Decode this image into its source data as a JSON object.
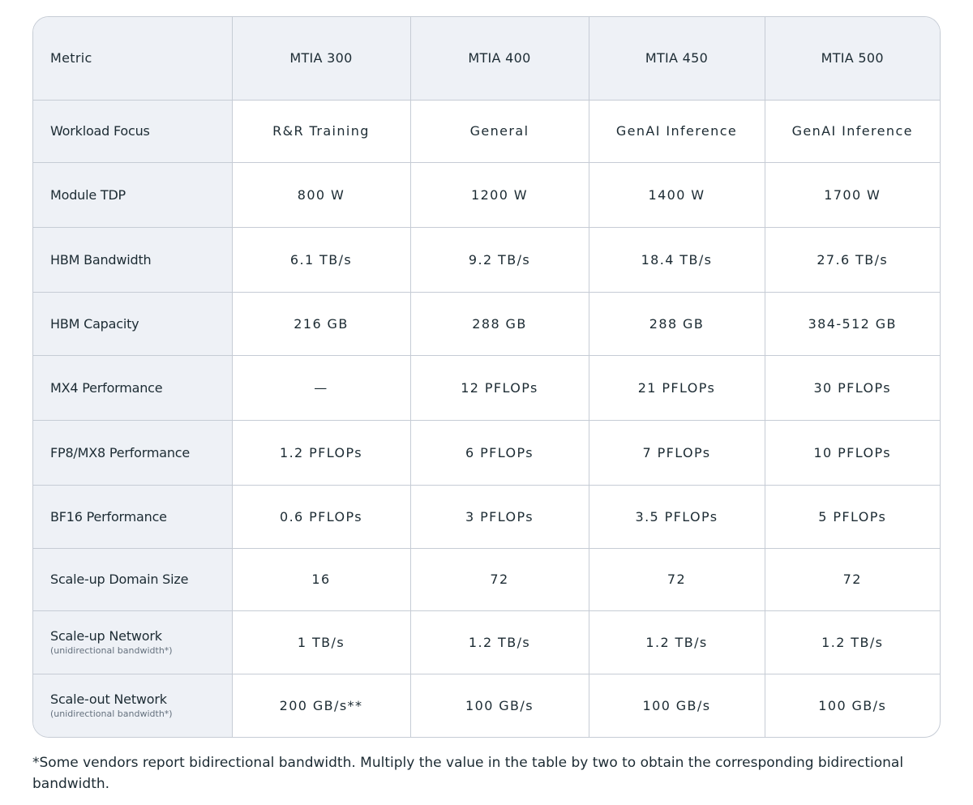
{
  "table": {
    "header": [
      "Metric",
      "MTIA 300",
      "MTIA 400",
      "MTIA 450",
      "MTIA 500"
    ],
    "rows": [
      {
        "label": "Workload Focus",
        "values": [
          "R&R Training",
          "General",
          "GenAI Inference",
          "GenAI Inference"
        ]
      },
      {
        "label": "Module TDP",
        "values": [
          "800 W",
          "1200 W",
          "1400 W",
          "1700 W"
        ]
      },
      {
        "label": "HBM Bandwidth",
        "values": [
          "6.1 TB/s",
          "9.2 TB/s",
          "18.4 TB/s",
          "27.6 TB/s"
        ]
      },
      {
        "label": "HBM Capacity",
        "values": [
          "216 GB",
          "288 GB",
          "288 GB",
          "384-512 GB"
        ]
      },
      {
        "label": "MX4 Performance",
        "values": [
          "—",
          "12 PFLOPs",
          "21 PFLOPs",
          "30 PFLOPs"
        ]
      },
      {
        "label": "FP8/MX8 Performance",
        "values": [
          "1.2 PFLOPs",
          "6 PFLOPs",
          "7 PFLOPs",
          "10 PFLOPs"
        ]
      },
      {
        "label": "BF16 Performance",
        "values": [
          "0.6 PFLOPs",
          "3 PFLOPs",
          "3.5 PFLOPs",
          "5 PFLOPs"
        ]
      },
      {
        "label": "Scale-up Domain Size",
        "values": [
          "16",
          "72",
          "72",
          "72"
        ]
      },
      {
        "label": "Scale-up Network",
        "sublabel": "(unidirectional bandwidth*)",
        "values": [
          "1 TB/s",
          "1.2 TB/s",
          "1.2 TB/s",
          "1.2 TB/s"
        ]
      },
      {
        "label": "Scale-out Network",
        "sublabel": "(unidirectional bandwidth*)",
        "values": [
          "200 GB/s**",
          "100 GB/s",
          "100 GB/s",
          "100 GB/s"
        ]
      }
    ]
  },
  "footnote": "*Some vendors report bidirectional bandwidth. Multiply the value in the table by two to obtain the corresponding bidirectional bandwidth."
}
